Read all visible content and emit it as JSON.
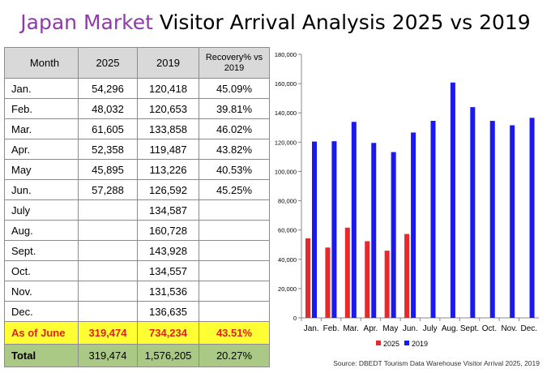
{
  "title": {
    "accent": "Japan Market",
    "rest": " Visitor Arrival Analysis 2025 vs 2019"
  },
  "table": {
    "headers": [
      "Month",
      "2025",
      "2019",
      "Recovery% vs 2019"
    ],
    "rows": [
      [
        "Jan.",
        "54,296",
        "120,418",
        "45.09%"
      ],
      [
        "Feb.",
        "48,032",
        "120,653",
        "39.81%"
      ],
      [
        "Mar.",
        "61,605",
        "133,858",
        "46.02%"
      ],
      [
        "Apr.",
        "52,358",
        "119,487",
        "43.82%"
      ],
      [
        "May",
        "45,895",
        "113,226",
        "40.53%"
      ],
      [
        "Jun.",
        "57,288",
        "126,592",
        "45.25%"
      ],
      [
        "July",
        "",
        "134,587",
        ""
      ],
      [
        "Aug.",
        "",
        "160,728",
        ""
      ],
      [
        "Sept.",
        "",
        "143,928",
        ""
      ],
      [
        "Oct.",
        "",
        "134,557",
        ""
      ],
      [
        "Nov.",
        "",
        "131,536",
        ""
      ],
      [
        "Dec.",
        "",
        "136,635",
        ""
      ]
    ],
    "as_of_june": [
      "As of June",
      "319,474",
      "734,234",
      "43.51%"
    ],
    "total": [
      "Total",
      "319,474",
      "1,576,205",
      "20.27%"
    ]
  },
  "source": "Source: DBEDT Tourism Data Warehouse Visitor Arrival 2025, 2019",
  "colors": {
    "s2025": "#e8292b",
    "s2019": "#1a1af0",
    "accent": "#8e3aa8",
    "highlight": "#ffff33",
    "total": "#a9c985"
  },
  "chart_data": {
    "type": "bar",
    "categories": [
      "Jan.",
      "Feb.",
      "Mar.",
      "Apr.",
      "May",
      "Jun.",
      "July",
      "Aug.",
      "Sept.",
      "Oct.",
      "Nov.",
      "Dec."
    ],
    "series": [
      {
        "name": "2025",
        "values": [
          54296,
          48032,
          61605,
          52358,
          45895,
          57288,
          null,
          null,
          null,
          null,
          null,
          null
        ]
      },
      {
        "name": "2019",
        "values": [
          120418,
          120653,
          133858,
          119487,
          113226,
          126592,
          134587,
          160728,
          143928,
          134557,
          131536,
          136635
        ]
      }
    ],
    "ylim": [
      0,
      180000
    ],
    "yticks": [
      "0",
      "20,000",
      "40,000",
      "60,000",
      "80,000",
      "100,000",
      "120,000",
      "140,000",
      "160,000",
      "180,000"
    ],
    "legend_position": "bottom",
    "grid": false
  }
}
